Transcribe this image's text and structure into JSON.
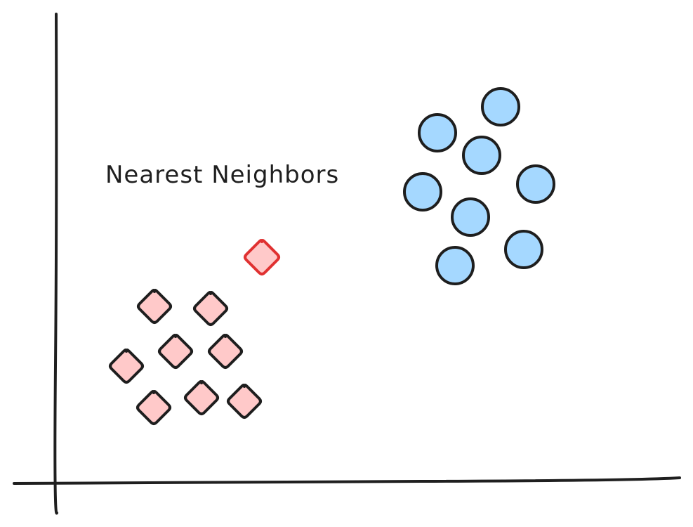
{
  "diagram": {
    "title": "Nearest Neighbors",
    "colors": {
      "axis": "#1f1f1f",
      "diamond_fill": "#ffc9c9",
      "diamond_stroke": "#1e1e1e",
      "query_fill": "#ffc9c9",
      "query_stroke": "#e03131",
      "circle_fill": "#a5d8ff",
      "circle_stroke": "#1e1e1e"
    },
    "classes": [
      {
        "name": "diamond-class",
        "count": 8
      },
      {
        "name": "circle-class",
        "count": 8
      }
    ],
    "query_point": {
      "shape": "diamond"
    }
  }
}
